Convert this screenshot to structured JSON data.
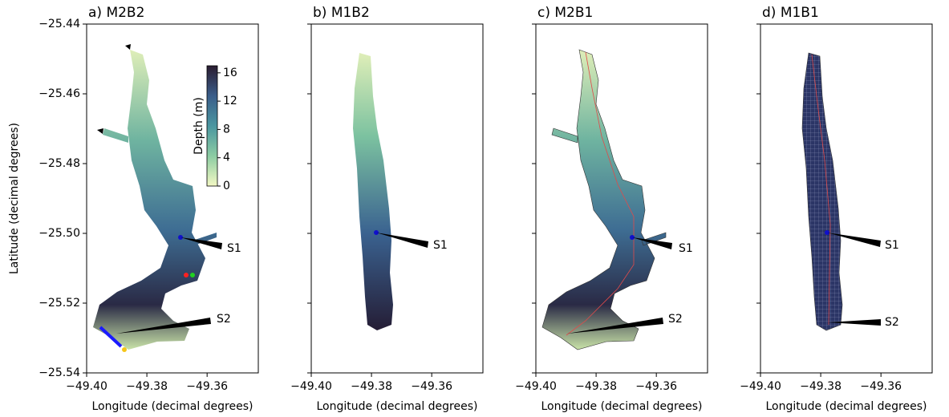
{
  "chart_data": [
    {
      "type": "map",
      "title": "a) M2B2",
      "xlabel": "Longitude (decimal degrees)",
      "ylabel": "Latitude (decimal degrees)",
      "xlim": [
        -49.4,
        -49.343
      ],
      "ylim": [
        -25.54,
        -25.44
      ],
      "xticks": [
        {
          "value": -49.4,
          "label": "−49.40"
        },
        {
          "value": -49.38,
          "label": "−49.38"
        },
        {
          "value": -49.36,
          "label": "−49.36"
        }
      ],
      "yticks": [
        {
          "value": -25.44,
          "label": "−25.44"
        },
        {
          "value": -25.46,
          "label": "−25.46"
        },
        {
          "value": -25.48,
          "label": "−25.48"
        },
        {
          "value": -25.5,
          "label": "−25.50"
        },
        {
          "value": -25.52,
          "label": "−25.52"
        },
        {
          "value": -25.54,
          "label": "−25.54"
        }
      ],
      "annotations": [
        "S1",
        "S2"
      ],
      "colorbar": {
        "label": "Depth (m)",
        "lim": [
          0,
          17
        ],
        "ticks": [
          0,
          4,
          8,
          12,
          16
        ],
        "colors": [
          "#f3f8c4",
          "#8ccca2",
          "#4a96a0",
          "#3a5d8a",
          "#2a1c30"
        ]
      }
    },
    {
      "type": "map",
      "title": "b) M1B2",
      "xlabel": "Longitude (decimal degrees)",
      "xlim": [
        -49.4,
        -49.343
      ],
      "ylim": [
        -25.54,
        -25.44
      ],
      "xticks": [
        {
          "value": -49.4,
          "label": "−49.40"
        },
        {
          "value": -49.38,
          "label": "−49.38"
        },
        {
          "value": -49.36,
          "label": "−49.36"
        }
      ],
      "yticks": [
        -25.44,
        -25.46,
        -25.48,
        -25.5,
        -25.52,
        -25.54
      ],
      "annotations": [
        "S1"
      ]
    },
    {
      "type": "map",
      "title": "c) M2B1",
      "xlabel": "Longitude (decimal degrees)",
      "xlim": [
        -49.4,
        -49.343
      ],
      "ylim": [
        -25.54,
        -25.44
      ],
      "xticks": [
        {
          "value": -49.4,
          "label": "−49.40"
        },
        {
          "value": -49.38,
          "label": "−49.38"
        },
        {
          "value": -49.36,
          "label": "−49.36"
        }
      ],
      "yticks": [
        -25.44,
        -25.46,
        -25.48,
        -25.5,
        -25.52,
        -25.54
      ],
      "annotations": [
        "S1",
        "S2"
      ]
    },
    {
      "type": "map",
      "title": "d) M1B1",
      "xlabel": "Longitude (decimal degrees)",
      "xlim": [
        -49.4,
        -49.343
      ],
      "ylim": [
        -25.54,
        -25.44
      ],
      "xticks": [
        {
          "value": -49.4,
          "label": "−49.40"
        },
        {
          "value": -49.38,
          "label": "−49.38"
        },
        {
          "value": -49.36,
          "label": "−49.36"
        }
      ],
      "yticks": [
        -25.44,
        -25.46,
        -25.48,
        -25.5,
        -25.52,
        -25.54
      ],
      "annotations": [
        "S1",
        "S2"
      ]
    }
  ]
}
